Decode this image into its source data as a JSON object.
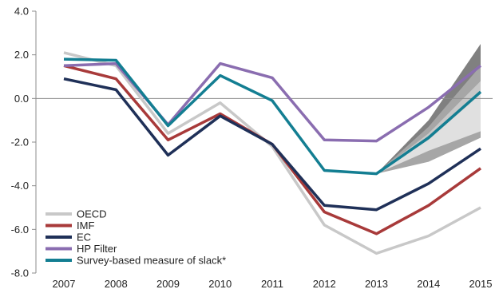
{
  "chart_data": {
    "type": "line",
    "title": "",
    "xlabel": "",
    "ylabel": "",
    "categories": [
      "2007",
      "2008",
      "2009",
      "2010",
      "2011",
      "2012",
      "2013",
      "2014",
      "2015"
    ],
    "ylim": [
      -8.0,
      4.0
    ],
    "yticks": [
      "4.0",
      "2.0",
      "0.0",
      "-2.0",
      "-4.0",
      "-6.0",
      "-8.0"
    ],
    "grid": false,
    "legend_position": "bottom-left",
    "series": [
      {
        "name": "OECD",
        "color": "#c8c8c8",
        "values": [
          2.1,
          1.5,
          -1.6,
          -0.2,
          -2.2,
          -5.8,
          -7.1,
          -6.3,
          -5.0
        ]
      },
      {
        "name": "IMF",
        "color": "#a83a3a",
        "values": [
          1.5,
          0.9,
          -1.9,
          -0.7,
          -2.1,
          -5.2,
          -6.2,
          -4.9,
          -3.2
        ]
      },
      {
        "name": "EC",
        "color": "#1f3058",
        "values": [
          0.9,
          0.4,
          -2.6,
          -0.8,
          -2.1,
          -4.9,
          -5.1,
          -3.9,
          -2.3
        ]
      },
      {
        "name": "HP Filter",
        "color": "#8a6db0",
        "values": [
          1.5,
          1.6,
          -1.2,
          1.6,
          0.95,
          -1.9,
          -1.95,
          -0.4,
          1.5
        ]
      },
      {
        "name": "Survey-based measure of slack*",
        "color": "#137e92",
        "values": [
          1.8,
          1.75,
          -1.25,
          1.05,
          -0.1,
          -3.3,
          -3.45,
          -1.8,
          0.3
        ]
      }
    ],
    "fan": {
      "start": "2013",
      "center": -3.45,
      "bands": [
        {
          "color": "#808080",
          "upper": [
            -1.0,
            2.5
          ],
          "lower": [
            -2.6,
            -1.5
          ]
        },
        {
          "color": "#a6a6a6",
          "upper": [
            -1.3,
            1.5
          ],
          "lower": [
            -2.9,
            -1.8
          ]
        },
        {
          "color": "#c8c8c8",
          "upper": [
            -1.6,
            0.8
          ],
          "lower": [
            -2.1,
            -1.0
          ]
        },
        {
          "color": "#e0e0e0",
          "upper": [
            -1.9,
            0.2
          ],
          "lower": [
            -2.4,
            -1.5
          ]
        }
      ]
    }
  }
}
